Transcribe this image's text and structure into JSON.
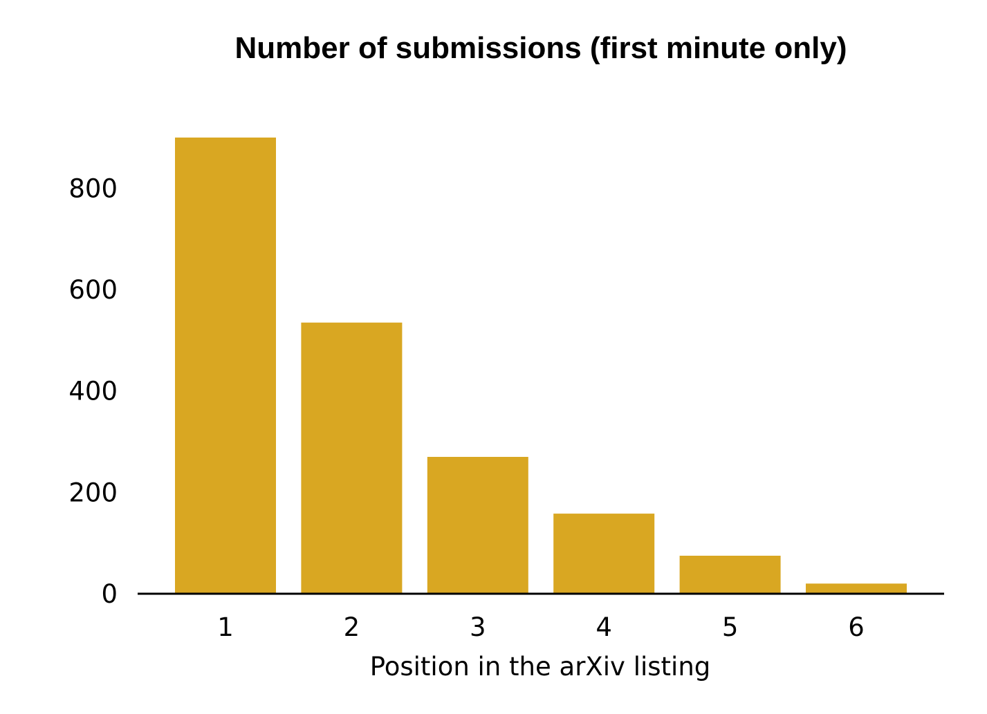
{
  "chart_data": {
    "type": "bar",
    "title": "Number of submissions (first minute only)",
    "xlabel": "Position in the arXiv listing",
    "ylabel": "",
    "categories": [
      "1",
      "2",
      "3",
      "4",
      "5",
      "6"
    ],
    "values": [
      900,
      535,
      270,
      158,
      75,
      20
    ],
    "ylim": [
      0,
      900
    ],
    "yticks": [
      0,
      200,
      400,
      600,
      800
    ],
    "ytick_labels": [
      "0",
      "200",
      "400",
      "600",
      "800"
    ],
    "bar_color": "#D9A722",
    "axis_color": "#000000",
    "grid": false,
    "legend": "none"
  }
}
